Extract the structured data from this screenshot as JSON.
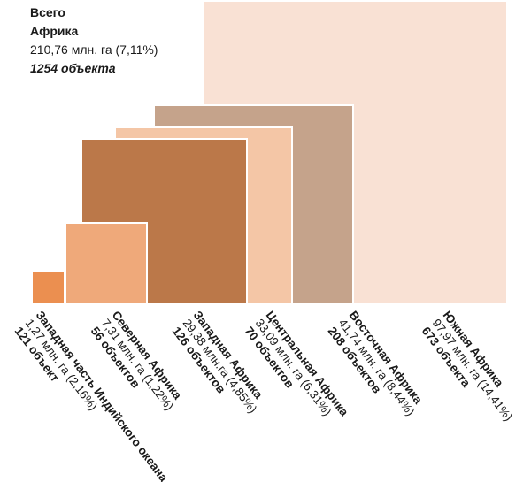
{
  "total": {
    "heading": "Всего",
    "region": "Африка",
    "area": "210,76 млн. га (7,11%)",
    "count": "1254 объекта"
  },
  "chart_data": {
    "type": "nested-squares",
    "title": "",
    "series": [
      {
        "name": "Западная часть Индийского океана",
        "value": 1.27,
        "area_label": "1,27 млн. га (2,16%)",
        "percent": 2.16,
        "sites": 121,
        "count_label": "121 объект",
        "color": "#eb8f50"
      },
      {
        "name": "Северная Африка",
        "value": 7.31,
        "area_label": "7,31 млн. га (1,22%)",
        "percent": 1.22,
        "sites": 56,
        "count_label": "56 объектов",
        "color": "#efa97a"
      },
      {
        "name": "Западная Африка",
        "value": 29.38,
        "area_label": "29,38 млн.га (4,85%)",
        "percent": 4.85,
        "sites": 126,
        "count_label": "126 объектов",
        "color": "#bb7849"
      },
      {
        "name": "Центральная Африка",
        "value": 33.09,
        "area_label": "33,09 млн. га (6,31%)",
        "percent": 6.31,
        "sites": 70,
        "count_label": "70 объектов",
        "color": "#f4c6a6"
      },
      {
        "name": "Восточная Африка",
        "value": 41.74,
        "area_label": "41,74 млн. га (8,44%)",
        "percent": 8.44,
        "sites": 208,
        "count_label": "208 объектов",
        "color": "#c5a38b"
      },
      {
        "name": "Южная Африка",
        "value": 97.97,
        "area_label": "97,97 млн. га (14,41%)",
        "percent": 14.41,
        "sites": 673,
        "count_label": "673 объекта",
        "color": "#f9e1d4"
      }
    ]
  }
}
